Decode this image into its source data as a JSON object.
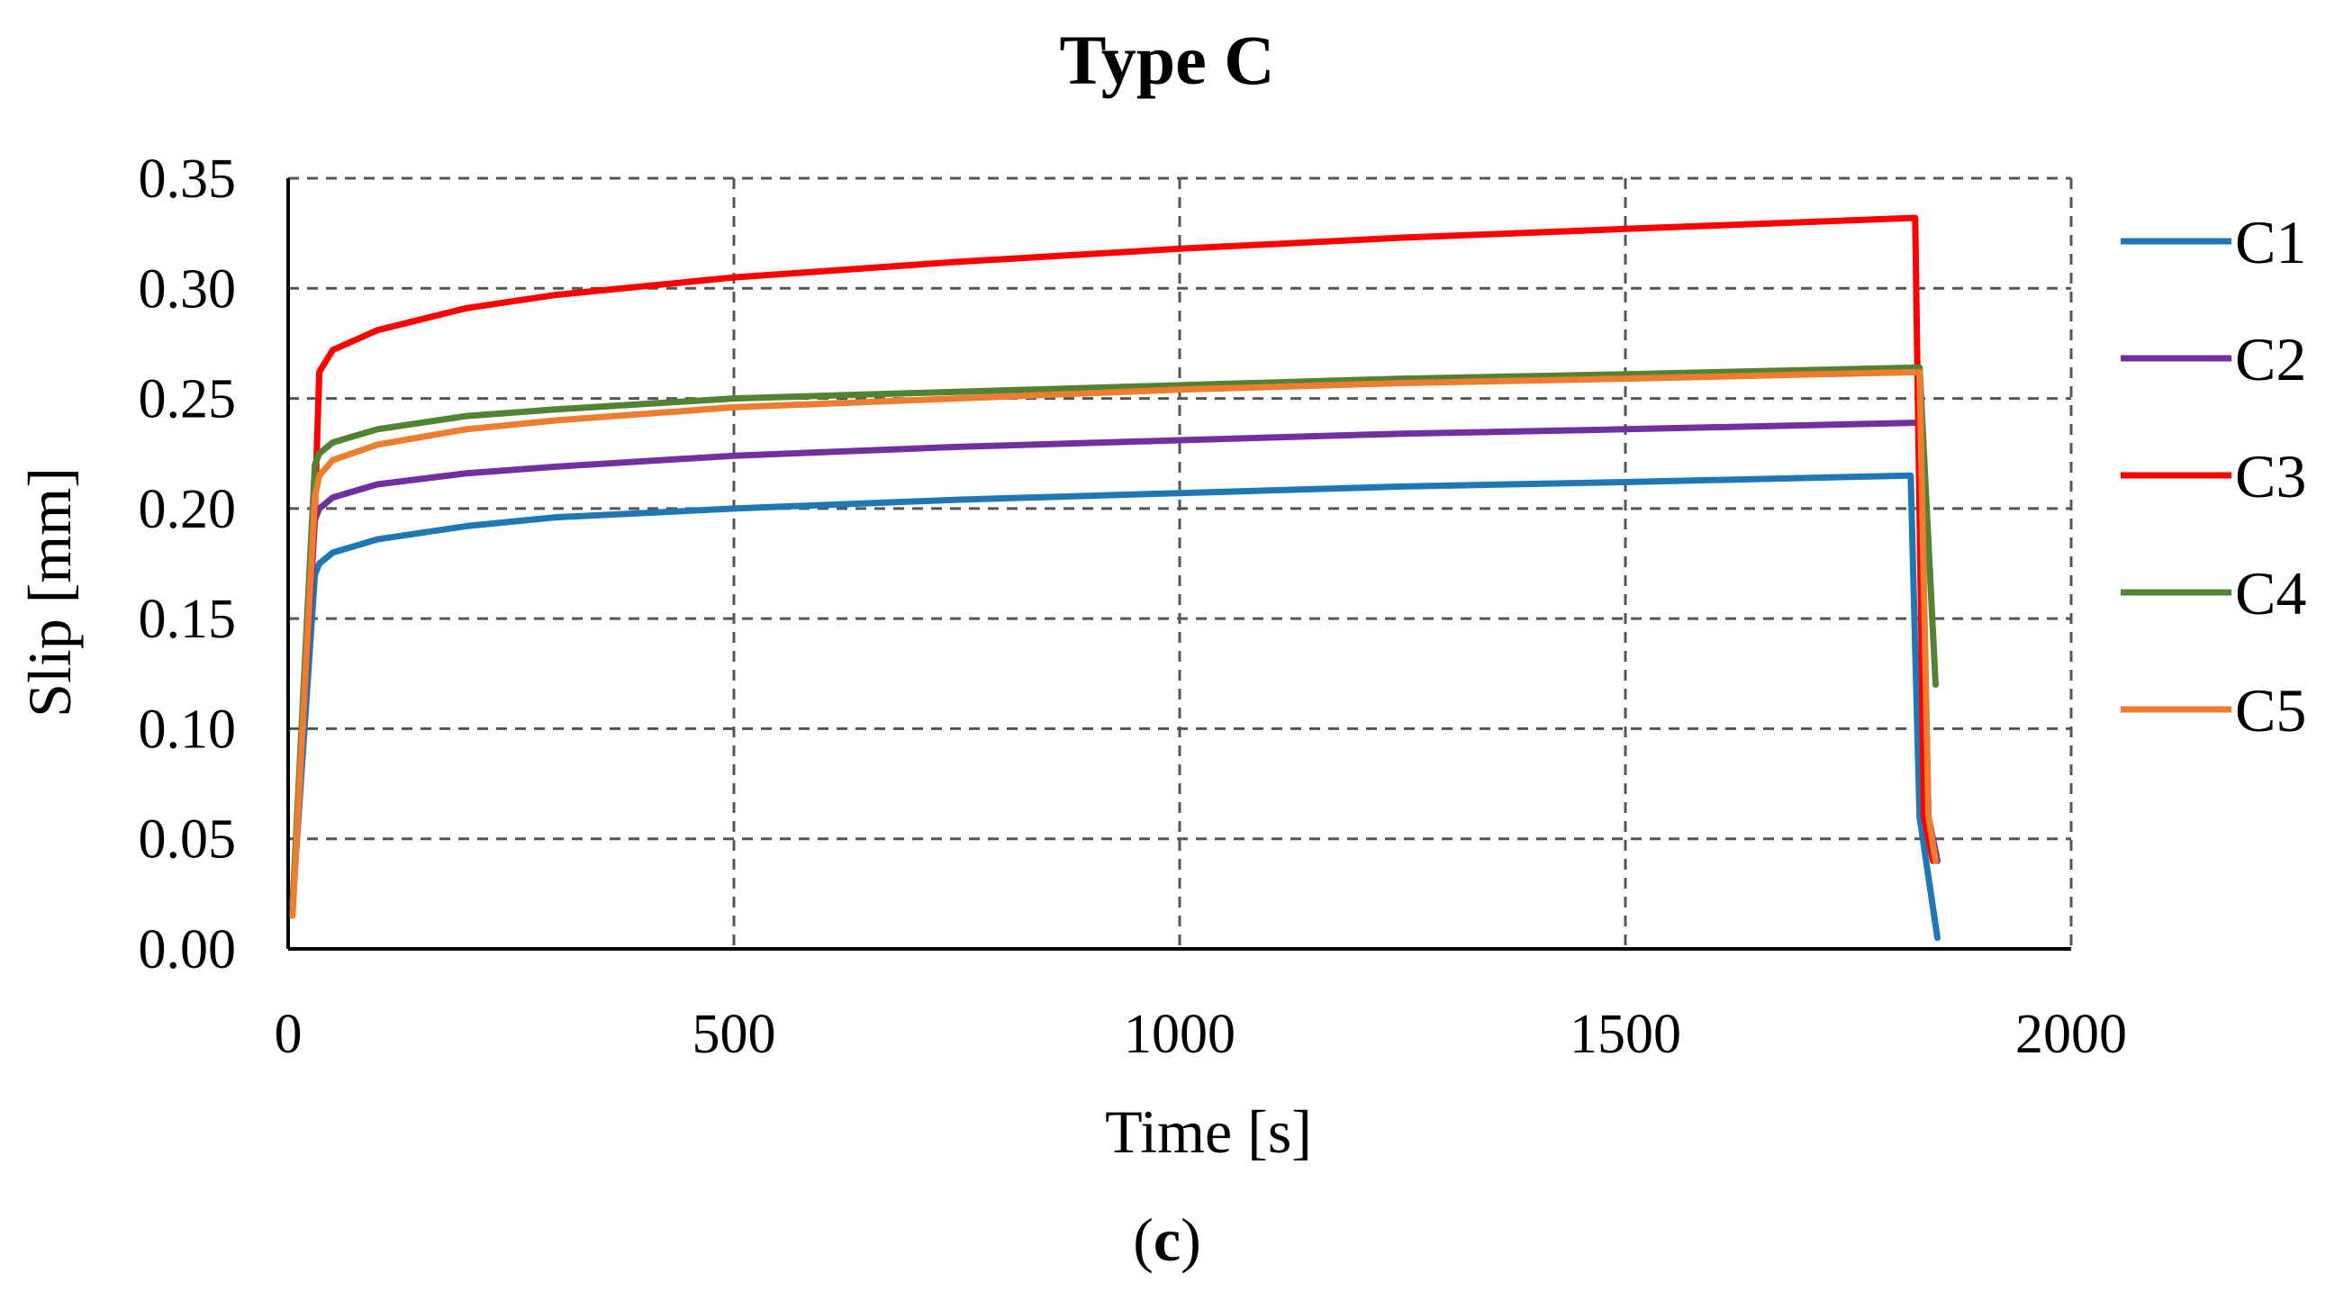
{
  "chart_data": {
    "type": "line",
    "title": "Type C",
    "xlabel": "Time [s]",
    "ylabel": "Slip [mm]",
    "caption": {
      "open": "(",
      "letter": "c",
      "close": ")"
    },
    "xlim": [
      0,
      2000
    ],
    "ylim": [
      0,
      0.35
    ],
    "xticks": [
      0,
      500,
      1000,
      1500,
      2000
    ],
    "xtick_labels": [
      "0",
      "500",
      "1000",
      "1500",
      "2000"
    ],
    "yticks": [
      0,
      0.05,
      0.1,
      0.15,
      0.2,
      0.25,
      0.3,
      0.35
    ],
    "ytick_labels": [
      "0.00",
      "0.05",
      "0.10",
      "0.15",
      "0.20",
      "0.25",
      "0.30",
      "0.35"
    ],
    "grid": true,
    "legend_position": "right",
    "series": [
      {
        "name": "C1",
        "color": "#1f77b4",
        "x": [
          5,
          30,
          35,
          50,
          100,
          200,
          300,
          500,
          750,
          1000,
          1250,
          1500,
          1820,
          1830,
          1850
        ],
        "y": [
          0.02,
          0.17,
          0.175,
          0.18,
          0.186,
          0.192,
          0.196,
          0.2,
          0.204,
          0.207,
          0.21,
          0.212,
          0.215,
          0.06,
          0.005
        ]
      },
      {
        "name": "C2",
        "color": "#7030a0",
        "x": [
          5,
          30,
          35,
          50,
          100,
          200,
          300,
          500,
          750,
          1000,
          1250,
          1500,
          1830,
          1840,
          1850
        ],
        "y": [
          0.02,
          0.195,
          0.2,
          0.205,
          0.211,
          0.216,
          0.219,
          0.224,
          0.228,
          0.231,
          0.234,
          0.236,
          0.239,
          0.06,
          0.04
        ]
      },
      {
        "name": "C3",
        "color": "#ff0000",
        "x": [
          5,
          30,
          35,
          50,
          100,
          200,
          300,
          500,
          750,
          1000,
          1250,
          1500,
          1825,
          1835,
          1845
        ],
        "y": [
          0.02,
          0.2,
          0.262,
          0.272,
          0.281,
          0.291,
          0.297,
          0.305,
          0.312,
          0.318,
          0.323,
          0.327,
          0.332,
          0.06,
          0.04
        ]
      },
      {
        "name": "C4",
        "color": "#548235",
        "x": [
          5,
          30,
          35,
          50,
          100,
          200,
          300,
          500,
          750,
          1000,
          1250,
          1500,
          1830,
          1848
        ],
        "y": [
          0.02,
          0.22,
          0.225,
          0.23,
          0.236,
          0.242,
          0.245,
          0.25,
          0.253,
          0.256,
          0.259,
          0.261,
          0.264,
          0.12
        ]
      },
      {
        "name": "C5",
        "color": "#ed7d31",
        "x": [
          5,
          30,
          35,
          50,
          100,
          200,
          300,
          500,
          750,
          1000,
          1250,
          1500,
          1830,
          1840,
          1848
        ],
        "y": [
          0.015,
          0.205,
          0.215,
          0.222,
          0.229,
          0.236,
          0.24,
          0.246,
          0.25,
          0.254,
          0.257,
          0.259,
          0.262,
          0.06,
          0.04
        ]
      }
    ]
  }
}
